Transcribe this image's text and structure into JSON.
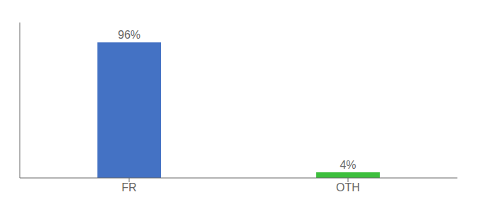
{
  "chart_data": {
    "type": "bar",
    "categories": [
      "FR",
      "OTH"
    ],
    "values": [
      96,
      4
    ],
    "value_labels": [
      "96%",
      "4%"
    ],
    "colors": [
      "#4472c4",
      "#3dbf3d"
    ],
    "ylim": [
      0,
      110
    ],
    "data_labels": true,
    "tick_labels": "x",
    "grid": false
  }
}
